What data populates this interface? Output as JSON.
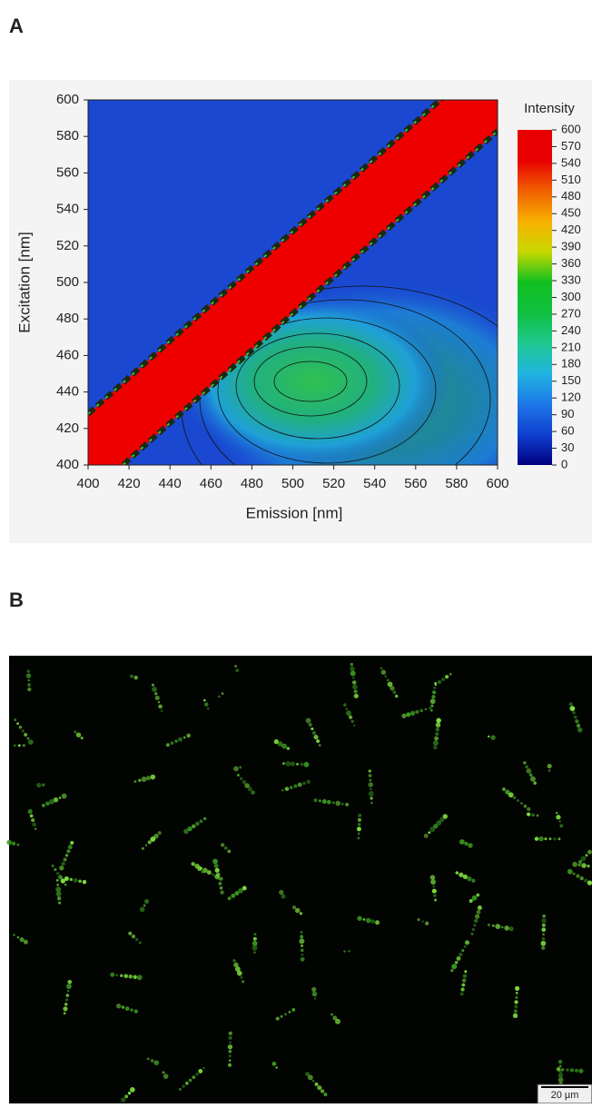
{
  "panels": [
    {
      "label": "A"
    },
    {
      "label": "B"
    }
  ],
  "chart_data": {
    "type": "contour",
    "xlabel": "Emission [nm]",
    "ylabel": "Excitation  [nm]",
    "xlim": [
      400,
      600
    ],
    "ylim": [
      400,
      600
    ],
    "xticks": [
      400,
      420,
      440,
      460,
      480,
      500,
      520,
      540,
      560,
      580,
      600
    ],
    "yticks": [
      400,
      420,
      440,
      460,
      480,
      500,
      520,
      540,
      560,
      580,
      600
    ],
    "colorbar_label": "Intensity",
    "clim": [
      0,
      600
    ],
    "colorbar_ticks": [
      0,
      30,
      60,
      90,
      120,
      150,
      180,
      210,
      240,
      270,
      300,
      330,
      360,
      390,
      420,
      450,
      480,
      510,
      540,
      570,
      600
    ],
    "colormap": [
      "#000080",
      "#1040d0",
      "#1e78e8",
      "#20b4e0",
      "#20c890",
      "#10c040",
      "#10c020",
      "#c8d800",
      "#f8b000",
      "#f06000",
      "#e80000",
      "#e80000"
    ]
  },
  "image": {
    "scale_bar": "20 µm"
  }
}
